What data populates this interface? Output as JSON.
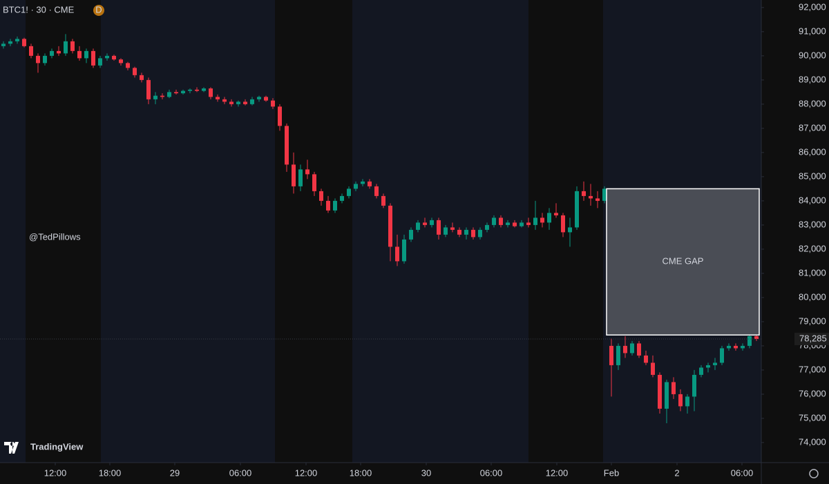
{
  "chart_data": {
    "type": "candlestick",
    "title": "BTC1! · 30 · CME",
    "badge": "D",
    "watermark": "@TedPillows",
    "logo": "TradingView",
    "up_color": "#089981",
    "down_color": "#f23645",
    "grid": false,
    "xlim": [
      -0.5,
      109.7
    ],
    "ylim": [
      73170,
      92310
    ],
    "yticks": [
      {
        "value": 74000,
        "label": "74,000"
      },
      {
        "value": 75000,
        "label": "75,000"
      },
      {
        "value": 76000,
        "label": "76,000"
      },
      {
        "value": 77000,
        "label": "77,000"
      },
      {
        "value": 78000,
        "label": "78,000"
      },
      {
        "value": 79000,
        "label": "79,000"
      },
      {
        "value": 80000,
        "label": "80,000"
      },
      {
        "value": 81000,
        "label": "81,000"
      },
      {
        "value": 82000,
        "label": "82,000"
      },
      {
        "value": 83000,
        "label": "83,000"
      },
      {
        "value": 84000,
        "label": "84,000"
      },
      {
        "value": 85000,
        "label": "85,000"
      },
      {
        "value": 86000,
        "label": "86,000"
      },
      {
        "value": 87000,
        "label": "87,000"
      },
      {
        "value": 88000,
        "label": "88,000"
      },
      {
        "value": 89000,
        "label": "89,000"
      },
      {
        "value": 90000,
        "label": "90,000"
      },
      {
        "value": 91000,
        "label": "91,000"
      },
      {
        "value": 92000,
        "label": "92,000"
      }
    ],
    "xticks": [
      {
        "value": 7.5,
        "label": "12:00"
      },
      {
        "value": 15.4,
        "label": "18:00"
      },
      {
        "value": 24.8,
        "label": "29"
      },
      {
        "value": 34.3,
        "label": "06:00"
      },
      {
        "value": 43.8,
        "label": "12:00"
      },
      {
        "value": 51.7,
        "label": "18:00"
      },
      {
        "value": 61.2,
        "label": "30"
      },
      {
        "value": 70.6,
        "label": "06:00"
      },
      {
        "value": 80.1,
        "label": "12:00"
      },
      {
        "value": 88,
        "label": "Feb"
      },
      {
        "value": 97.5,
        "label": "2"
      },
      {
        "value": 106.9,
        "label": "06:00"
      }
    ],
    "last_price": {
      "value": 78285,
      "label": "78,285"
    },
    "gap": {
      "label": "CME GAP",
      "top": 84500,
      "bottom": 78450
    },
    "ohlc": [
      [
        90400,
        90600,
        90300,
        90500
      ],
      [
        90500,
        90700,
        90400,
        90600
      ],
      [
        90600,
        90800,
        90500,
        90700
      ],
      [
        90700,
        90750,
        90350,
        90400
      ],
      [
        90400,
        90500,
        89900,
        90000
      ],
      [
        90000,
        90100,
        89300,
        89700
      ],
      [
        89700,
        90100,
        89600,
        90000
      ],
      [
        90000,
        90300,
        89900,
        90200
      ],
      [
        90200,
        90400,
        90000,
        90100
      ],
      [
        90100,
        90900,
        90000,
        90600
      ],
      [
        90600,
        90700,
        90100,
        90200
      ],
      [
        90200,
        90400,
        89800,
        89900
      ],
      [
        89900,
        90300,
        89700,
        90200
      ],
      [
        90200,
        90300,
        89500,
        89600
      ],
      [
        89600,
        90000,
        89500,
        89900
      ],
      [
        89900,
        90100,
        89800,
        90000
      ],
      [
        90000,
        90050,
        89800,
        89850
      ],
      [
        89850,
        89900,
        89600,
        89700
      ],
      [
        89700,
        89750,
        89400,
        89500
      ],
      [
        89500,
        89550,
        89100,
        89200
      ],
      [
        89200,
        89300,
        88900,
        89000
      ],
      [
        89000,
        89100,
        88000,
        88200
      ],
      [
        88200,
        88500,
        88000,
        88350
      ],
      [
        88350,
        88450,
        88200,
        88300
      ],
      [
        88300,
        88600,
        88250,
        88500
      ],
      [
        88500,
        88600,
        88400,
        88450
      ],
      [
        88450,
        88600,
        88400,
        88550
      ],
      [
        88550,
        88650,
        88450,
        88600
      ],
      [
        88600,
        88700,
        88500,
        88550
      ],
      [
        88550,
        88700,
        88500,
        88650
      ],
      [
        88650,
        88700,
        88200,
        88300
      ],
      [
        88300,
        88400,
        88100,
        88200
      ],
      [
        88200,
        88300,
        88000,
        88100
      ],
      [
        88100,
        88200,
        87900,
        88000
      ],
      [
        88000,
        88150,
        87900,
        88100
      ],
      [
        88100,
        88200,
        87950,
        88000
      ],
      [
        88000,
        88300,
        87950,
        88200
      ],
      [
        88200,
        88350,
        88100,
        88300
      ],
      [
        88300,
        88350,
        88100,
        88150
      ],
      [
        88150,
        88250,
        87800,
        87900
      ],
      [
        87900,
        88000,
        86900,
        87100
      ],
      [
        87100,
        87200,
        85200,
        85500
      ],
      [
        85500,
        86000,
        84300,
        84600
      ],
      [
        84600,
        85500,
        84400,
        85300
      ],
      [
        85300,
        85700,
        84900,
        85100
      ],
      [
        85100,
        85200,
        84200,
        84400
      ],
      [
        84400,
        84500,
        83800,
        84000
      ],
      [
        84000,
        84200,
        83500,
        83600
      ],
      [
        83600,
        84100,
        83500,
        84000
      ],
      [
        84000,
        84300,
        83900,
        84200
      ],
      [
        84200,
        84600,
        84100,
        84500
      ],
      [
        84500,
        84800,
        84400,
        84700
      ],
      [
        84700,
        84900,
        84600,
        84800
      ],
      [
        84800,
        84900,
        84500,
        84600
      ],
      [
        84600,
        84700,
        84100,
        84200
      ],
      [
        84200,
        84300,
        83700,
        83800
      ],
      [
        83800,
        83900,
        81500,
        82100
      ],
      [
        82100,
        82600,
        81300,
        81500
      ],
      [
        81500,
        82600,
        81400,
        82400
      ],
      [
        82400,
        82900,
        82300,
        82800
      ],
      [
        82800,
        83200,
        82700,
        83100
      ],
      [
        83100,
        83300,
        82900,
        83000
      ],
      [
        83000,
        83300,
        82900,
        83200
      ],
      [
        83200,
        83300,
        82400,
        82600
      ],
      [
        82600,
        83000,
        82500,
        82900
      ],
      [
        82900,
        83100,
        82700,
        82800
      ],
      [
        82800,
        82900,
        82500,
        82600
      ],
      [
        82600,
        82900,
        82400,
        82800
      ],
      [
        82800,
        82900,
        82400,
        82500
      ],
      [
        82500,
        82900,
        82400,
        82800
      ],
      [
        82800,
        83100,
        82700,
        83000
      ],
      [
        83000,
        83400,
        82900,
        83300
      ],
      [
        83300,
        83400,
        82900,
        83000
      ],
      [
        83000,
        83200,
        82900,
        83100
      ],
      [
        83100,
        83200,
        82900,
        82950
      ],
      [
        82950,
        83200,
        82900,
        83100
      ],
      [
        83100,
        83300,
        82900,
        83000
      ],
      [
        83000,
        84000,
        82800,
        83300
      ],
      [
        83300,
        83500,
        82900,
        83100
      ],
      [
        83100,
        83700,
        82800,
        83500
      ],
      [
        83500,
        83900,
        83300,
        83400
      ],
      [
        83400,
        83500,
        82500,
        82700
      ],
      [
        82700,
        83300,
        82100,
        82900
      ],
      [
        82900,
        84600,
        82800,
        84400
      ],
      [
        84400,
        84800,
        84000,
        84200
      ],
      [
        84200,
        84700,
        83800,
        84100
      ],
      [
        84100,
        84400,
        83700,
        84000
      ],
      [
        84000,
        84600,
        83900,
        84500
      ],
      [
        78000,
        78300,
        75900,
        77200
      ],
      [
        77200,
        78100,
        77000,
        78000
      ],
      [
        78000,
        78400,
        77500,
        77700
      ],
      [
        77700,
        78200,
        77600,
        78100
      ],
      [
        78100,
        78200,
        77500,
        77600
      ],
      [
        77600,
        77800,
        77200,
        77300
      ],
      [
        77300,
        77600,
        76700,
        76800
      ],
      [
        76800,
        76900,
        75200,
        75400
      ],
      [
        75400,
        76600,
        74800,
        76500
      ],
      [
        76500,
        76700,
        75800,
        76000
      ],
      [
        76000,
        76200,
        75300,
        75500
      ],
      [
        75500,
        76000,
        75200,
        75900
      ],
      [
        75900,
        77000,
        75300,
        76800
      ],
      [
        76800,
        77200,
        76700,
        77100
      ],
      [
        77100,
        77300,
        76900,
        77200
      ],
      [
        77200,
        77500,
        77000,
        77300
      ],
      [
        77300,
        78000,
        77200,
        77900
      ],
      [
        77900,
        78100,
        77800,
        78000
      ],
      [
        78000,
        78100,
        77800,
        77900
      ],
      [
        77900,
        78100,
        77800,
        78000
      ],
      [
        78000,
        78600,
        77900,
        78400
      ],
      [
        78400,
        78500,
        78200,
        78285
      ]
    ]
  }
}
